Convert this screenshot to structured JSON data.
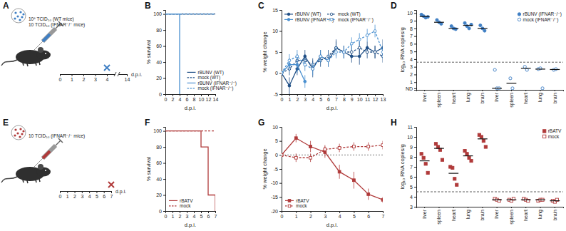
{
  "chart_data": [
    {
      "type": "timeline",
      "title": "A",
      "annotations": [
        "10⁵ TCID₅₀ (WT mice)",
        "10 TCID₅₀ (IFNAR⁻/⁻ mice)"
      ],
      "xlabel": "d.p.i.",
      "xlim": [
        0,
        14
      ],
      "xticks": [
        0,
        1,
        2,
        3,
        4,
        14
      ],
      "endpoint": 4,
      "color": "#3f7fc4"
    },
    {
      "type": "line",
      "title": "B",
      "xlabel": "d.p.i.",
      "ylabel": "% survival",
      "xlim": [
        0,
        14
      ],
      "xticks": [
        0,
        2,
        4,
        6,
        8,
        10,
        12,
        14
      ],
      "ylim": [
        0,
        105
      ],
      "yticks": [
        0,
        20,
        40,
        60,
        80,
        100
      ],
      "legend": "lower right",
      "series": [
        {
          "name": "rBUNV (WT)",
          "color": "#1f4e85",
          "line_style": "solid",
          "marker": "none",
          "x": [
            0,
            14
          ],
          "values": [
            100,
            100
          ]
        },
        {
          "name": "mock (WT)",
          "color": "#1f4e85",
          "line_style": "dashed",
          "marker": "none",
          "x": [
            0,
            14
          ],
          "values": [
            100,
            100
          ]
        },
        {
          "name": "rBUNV (IFNAR⁻/⁻)",
          "color": "#4a90d0",
          "line_style": "solid",
          "marker": "none",
          "x": [
            0,
            4,
            4
          ],
          "values": [
            100,
            100,
            0
          ]
        },
        {
          "name": "mock (IFNAR⁻/⁻)",
          "color": "#4a90d0",
          "line_style": "dashed",
          "marker": "none",
          "x": [
            0,
            14
          ],
          "values": [
            100,
            100
          ]
        }
      ]
    },
    {
      "type": "line",
      "title": "C",
      "xlabel": "d.p.i.",
      "ylabel": "% weight change",
      "xlim": [
        0,
        13
      ],
      "xticks": [
        0,
        1,
        2,
        3,
        4,
        5,
        6,
        7,
        8,
        9,
        10,
        11,
        12,
        13
      ],
      "ylim": [
        -5,
        15
      ],
      "yticks": [
        -5,
        0,
        5,
        10,
        15
      ],
      "legend": "upper left",
      "series": [
        {
          "name": "rBUNV (WT)",
          "color": "#1f4e85",
          "line_style": "solid",
          "marker": "circle",
          "x": [
            0,
            1,
            2,
            3,
            4,
            5,
            6,
            7,
            8,
            9,
            10,
            11,
            12,
            13
          ],
          "values": [
            0,
            -3,
            1,
            4,
            1,
            4,
            3,
            6,
            5,
            4,
            4,
            6,
            5,
            6
          ],
          "errors": [
            0,
            2,
            1.5,
            1.5,
            2,
            1.5,
            1.5,
            2,
            1.5,
            1.5,
            2,
            1.5,
            1.5,
            2
          ]
        },
        {
          "name": "mock (WT)",
          "color": "#1f4e85",
          "line_style": "dashed",
          "marker": "open_circle",
          "x": [
            0,
            1,
            2,
            3,
            4,
            5,
            6,
            7,
            8,
            9,
            10,
            11,
            12,
            13
          ],
          "values": [
            0,
            1,
            3,
            3,
            2,
            3,
            4,
            6,
            5,
            5,
            6,
            5,
            5,
            4
          ],
          "errors": [
            0,
            1.5,
            1.5,
            1.5,
            1.5,
            1.5,
            1.5,
            1.5,
            1.5,
            1.5,
            1.5,
            1.5,
            1.5,
            1.5
          ]
        },
        {
          "name": "rBUNV (IFNAR⁻/⁻)",
          "color": "#4a90d0",
          "line_style": "solid",
          "marker": "circle",
          "x": [
            0,
            1,
            2,
            3
          ],
          "values": [
            0,
            2,
            2,
            -2
          ],
          "errors": [
            0,
            1.5,
            2,
            1.5
          ]
        },
        {
          "name": "mock (IFNAR⁻/⁻)",
          "color": "#4a90d0",
          "line_style": "dashed",
          "marker": "open_circle",
          "x": [
            0,
            1,
            2,
            3,
            4,
            5,
            6,
            7,
            8,
            9,
            10,
            11,
            12,
            13
          ],
          "values": [
            0,
            3,
            4,
            2,
            1,
            4,
            3,
            5,
            5,
            7,
            8,
            9,
            10,
            5
          ],
          "errors": [
            0,
            1.5,
            1.5,
            1.5,
            1.5,
            1.5,
            1.5,
            1.5,
            1.5,
            1.5,
            1.5,
            1.5,
            1.5,
            1.5
          ]
        }
      ]
    },
    {
      "type": "strip",
      "title": "D",
      "ylabel": "log₁₀ RNA copies/g",
      "categories": [
        "liver",
        "spleen",
        "heart",
        "lung",
        "brain",
        "liver",
        "spleen",
        "heart",
        "lung",
        "brain"
      ],
      "ylim": [
        0,
        10.4
      ],
      "yticks": [
        {
          "value": 0.2,
          "label": "ND"
        },
        1,
        2,
        3,
        4,
        5,
        6,
        7,
        8,
        9,
        10
      ],
      "reference_line": 3.6,
      "legend": "upper right",
      "series": [
        {
          "name": "rBUNV (IFNAR⁻/⁻)",
          "color": "#3f7fc4",
          "marker": "circle",
          "values": [
            [
              9.8,
              9.6,
              9.4,
              9.5
            ],
            [
              9.1,
              8.8,
              8.6
            ],
            [
              8.3,
              8.0,
              7.9
            ],
            [
              8.7,
              8.3,
              8.0,
              8.5
            ],
            [
              8.4,
              8.0,
              7.7
            ],
            null,
            null,
            null,
            null,
            null
          ],
          "medians": [
            9.55,
            8.8,
            8.0,
            8.4,
            8.0,
            null,
            null,
            null,
            null,
            null
          ]
        },
        {
          "name": "mock (IFNAR⁻/⁻)",
          "color": "#3f7fc4",
          "marker": "open_circle",
          "values": [
            null,
            null,
            null,
            null,
            null,
            [
              2.6,
              0.2,
              0.2
            ],
            [
              1.5,
              0.2
            ],
            [
              3.0,
              2.6
            ],
            [
              2.7,
              2.8,
              0.2
            ],
            [
              2.6,
              2.7
            ]
          ],
          "medians": [
            null,
            null,
            null,
            null,
            null,
            0.2,
            0.85,
            2.8,
            2.7,
            2.65
          ]
        }
      ]
    },
    {
      "type": "timeline",
      "title": "E",
      "annotations": [
        "10 TCID₅₀ (IFNAR⁻/⁻ mice)"
      ],
      "xlabel": "d.p.i.",
      "xlim": [
        0,
        7
      ],
      "xticks": [
        0,
        1,
        2,
        3,
        4,
        5,
        6,
        7
      ],
      "endpoint": 7,
      "color": "#b03a3a"
    },
    {
      "type": "line",
      "title": "F",
      "xlabel": "d.p.i.",
      "ylabel": "% survival",
      "xlim": [
        0,
        7
      ],
      "xticks": [
        0,
        1,
        2,
        3,
        4,
        5,
        6,
        7
      ],
      "ylim": [
        0,
        105
      ],
      "yticks": [
        0,
        20,
        40,
        60,
        80,
        100
      ],
      "legend": "lower left",
      "series": [
        {
          "name": "rBATV",
          "color": "#b03a3a",
          "line_style": "solid",
          "marker": "none",
          "x": [
            0,
            5,
            5,
            6,
            6,
            7,
            7
          ],
          "values": [
            100,
            100,
            80,
            80,
            20,
            20,
            0
          ]
        },
        {
          "name": "mock",
          "color": "#b03a3a",
          "line_style": "dashed",
          "marker": "none",
          "x": [
            0,
            7
          ],
          "values": [
            100,
            100
          ]
        }
      ]
    },
    {
      "type": "line",
      "title": "G",
      "xlabel": "d.p.i.",
      "ylabel": "% weight change",
      "xlim": [
        0,
        7
      ],
      "xticks": [
        0,
        1,
        2,
        3,
        4,
        5,
        6,
        7
      ],
      "ylim": [
        -20,
        10
      ],
      "yticks": [
        -20,
        -15,
        -10,
        -5,
        0,
        5,
        10
      ],
      "reference_line": 0,
      "legend": "lower left",
      "series": [
        {
          "name": "rBATV",
          "color": "#b03a3a",
          "line_style": "solid",
          "marker": "square",
          "x": [
            0,
            1,
            2,
            3,
            4,
            5,
            6,
            7
          ],
          "values": [
            0,
            6,
            3,
            1,
            -6,
            -9,
            -14,
            -16
          ],
          "errors": [
            0,
            1.5,
            2,
            2,
            2.5,
            3,
            2,
            1
          ]
        },
        {
          "name": "mock",
          "color": "#b03a3a",
          "line_style": "dashed",
          "marker": "open_square",
          "x": [
            0,
            1,
            2,
            3,
            4,
            5,
            6,
            7
          ],
          "values": [
            0,
            -1,
            -1,
            2,
            2.5,
            3,
            3,
            3.5
          ],
          "errors": [
            0,
            1.5,
            1.5,
            1.5,
            1.5,
            1.5,
            1.5,
            1.5
          ]
        }
      ]
    },
    {
      "type": "strip",
      "title": "H",
      "ylabel": "log₁₀ RNA copies/g",
      "categories": [
        "liver",
        "spleen",
        "heart",
        "lung",
        "brain",
        "liver",
        "spleen",
        "heart",
        "lung",
        "brain"
      ],
      "ylim": [
        3,
        11
      ],
      "yticks": [
        3,
        4,
        5,
        6,
        7,
        8,
        9,
        10,
        11
      ],
      "reference_line": 4.5,
      "legend": "upper right",
      "series": [
        {
          "name": "rBATV",
          "color": "#b03a3a",
          "marker": "square",
          "values": [
            [
              8.3,
              7.9,
              7.3,
              6.4
            ],
            [
              9.3,
              9.0,
              8.7,
              7.7
            ],
            [
              7.0,
              6.9,
              5.8,
              5.2
            ],
            [
              8.6,
              8.3,
              7.9,
              7.6
            ],
            [
              10.2,
              10.0,
              9.6,
              9.0
            ],
            null,
            null,
            null,
            null,
            null
          ],
          "medians": [
            7.6,
            8.85,
            6.35,
            8.1,
            9.8,
            null,
            null,
            null,
            null,
            null
          ]
        },
        {
          "name": "mock",
          "color": "#b03a3a",
          "marker": "open_square",
          "values": [
            null,
            null,
            null,
            null,
            null,
            [
              3.8,
              3.7,
              3.6
            ],
            [
              3.7,
              3.6,
              3.8
            ],
            [
              3.8,
              3.7,
              3.6
            ],
            [
              3.6,
              3.7,
              3.7
            ],
            [
              3.6,
              3.5,
              3.7
            ]
          ],
          "medians": [
            null,
            null,
            null,
            null,
            null,
            3.7,
            3.7,
            3.7,
            3.7,
            3.6
          ]
        }
      ]
    }
  ]
}
